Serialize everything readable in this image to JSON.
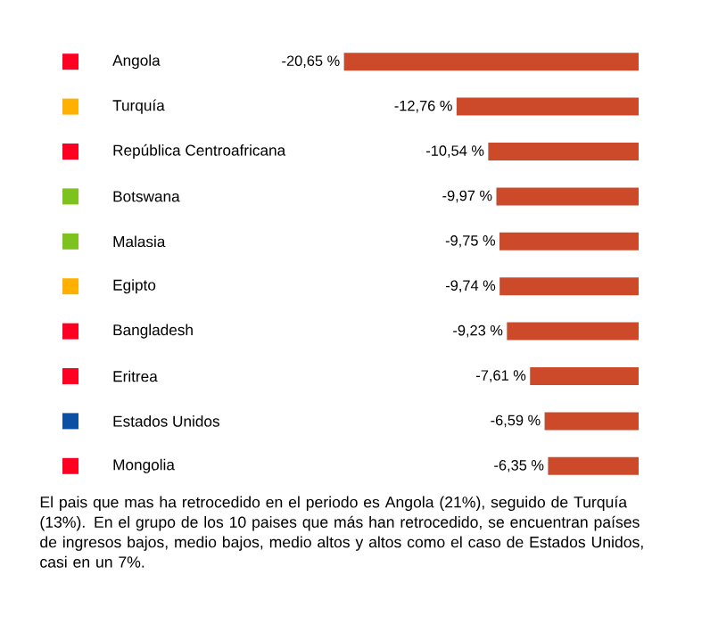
{
  "chart_data": {
    "type": "bar",
    "orientation": "horizontal",
    "categories": [
      "Angola",
      "Turquía",
      "República Centroafricana",
      "Botswana",
      "Malasia",
      "Egipto",
      "Bangladesh",
      "Eritrea",
      "Estados Unidos",
      "Mongolia"
    ],
    "values": [
      -20.65,
      -12.76,
      -10.54,
      -9.97,
      -9.75,
      -9.74,
      -9.23,
      -7.61,
      -6.59,
      -6.35
    ],
    "value_labels": [
      "-20,65 %",
      "-12,76 %",
      "-10,54 %",
      "-9,97 %",
      "-9,75 %",
      "-9,74 %",
      "-9,23 %",
      "-7,61 %",
      "-6,59 %",
      "-6,35 %"
    ],
    "color": "#cc4a2a",
    "xlim": [
      -21,
      0
    ],
    "tick_labels": "y",
    "annotations": [
      "El pais que mas ha retrocedido en el periodo es Angola (21%), seguido de Turquía (13%). En el grupo de los 10 paises que más han retrocedido, se encuentran países de ingresos bajos, medio bajos, medio altos y altos como el caso de Estados Unidos, casi en un 7%."
    ]
  }
}
